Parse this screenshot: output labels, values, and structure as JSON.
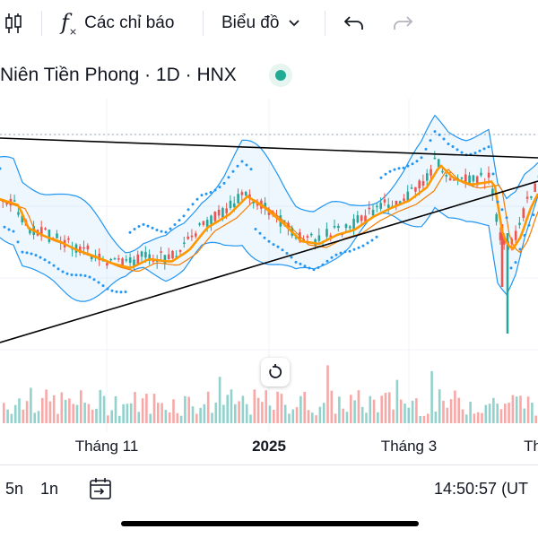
{
  "toolbar": {
    "indicators_label": "Các chỉ báo",
    "chart_type_label": "Biểu đồ"
  },
  "symbol": {
    "title": "Niên Tiền Phong · 1D · HNX",
    "status_color": "#22ab94"
  },
  "chart_data": {
    "type": "candlestick",
    "x_tick_labels": [
      "Tháng 11",
      "2025",
      "Tháng 3",
      "Th"
    ],
    "overlays": [
      "bollinger-bands",
      "parabolic-sar",
      "moving-averages",
      "trend-lines",
      "volume"
    ],
    "colors": {
      "up": "#26a69a",
      "down": "#ef5350",
      "bands": "#2196f3",
      "ma_fast": "#ff9800",
      "ma_slow": "#f57c00",
      "trendline": "#000000"
    }
  },
  "bottom_bar": {
    "range_5d": "5n",
    "range_1d": "1n",
    "time": "14:50:57 (UT"
  },
  "icons": [
    "candles-icon",
    "function-icon",
    "chevron-down-icon",
    "undo-icon",
    "redo-icon",
    "reset-icon",
    "goto-date-icon"
  ]
}
